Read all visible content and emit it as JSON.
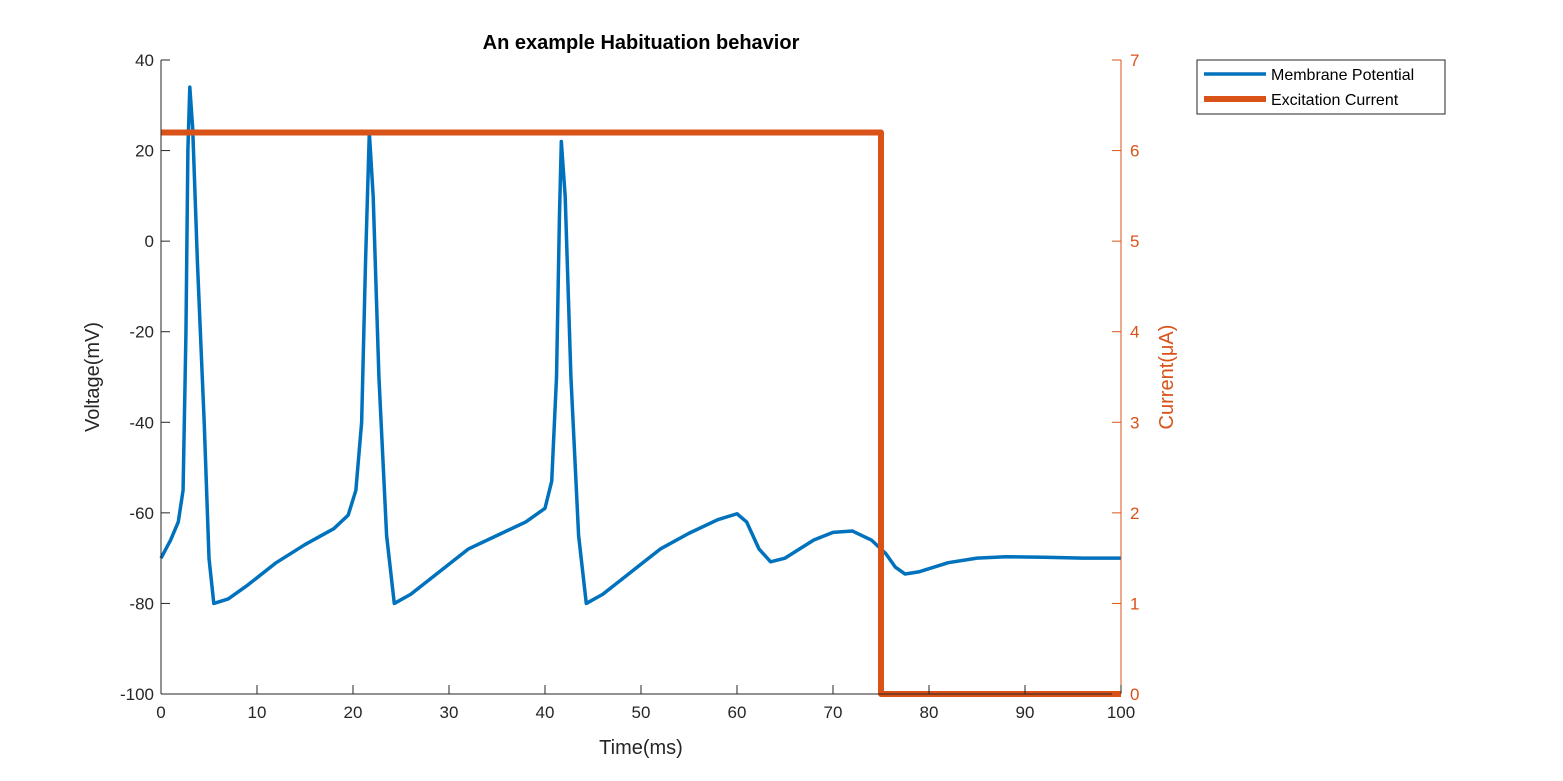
{
  "chart_data": {
    "type": "line",
    "title": "An example Habituation behavior",
    "xlabel": "Time(ms)",
    "ylabel_left": "Voltage(mV)",
    "ylabel_right": "Current(μA)",
    "xlim": [
      0,
      100
    ],
    "ylim_left": [
      -100,
      40
    ],
    "ylim_right": [
      0,
      7
    ],
    "x_ticks": [
      "0",
      "10",
      "20",
      "30",
      "40",
      "50",
      "60",
      "70",
      "80",
      "90",
      "100"
    ],
    "y_left_ticks": [
      "-100",
      "-80",
      "-60",
      "-40",
      "-20",
      "0",
      "20",
      "40"
    ],
    "y_right_ticks": [
      "0",
      "1",
      "2",
      "3",
      "4",
      "5",
      "6",
      "7"
    ],
    "grid": false,
    "legend_position": "outside top-right",
    "series": [
      {
        "name": "Membrane Potential",
        "axis": "left",
        "color": "#0072BD",
        "points": [
          [
            0,
            -70
          ],
          [
            1,
            -66
          ],
          [
            1.8,
            -62
          ],
          [
            2.3,
            -55
          ],
          [
            2.6,
            -20
          ],
          [
            2.8,
            20
          ],
          [
            3.0,
            34
          ],
          [
            3.3,
            25
          ],
          [
            3.8,
            -5
          ],
          [
            4.5,
            -40
          ],
          [
            5.0,
            -70
          ],
          [
            5.5,
            -80
          ],
          [
            7,
            -79
          ],
          [
            9,
            -76
          ],
          [
            12,
            -71
          ],
          [
            15,
            -67
          ],
          [
            18,
            -63.5
          ],
          [
            19.5,
            -60.5
          ],
          [
            20.3,
            -55
          ],
          [
            20.9,
            -40
          ],
          [
            21.3,
            -5
          ],
          [
            21.7,
            24
          ],
          [
            22.1,
            10
          ],
          [
            22.7,
            -30
          ],
          [
            23.5,
            -65
          ],
          [
            24.3,
            -80
          ],
          [
            26,
            -78
          ],
          [
            29,
            -73
          ],
          [
            32,
            -68
          ],
          [
            35,
            -65
          ],
          [
            38,
            -62
          ],
          [
            40,
            -59
          ],
          [
            40.7,
            -53
          ],
          [
            41.2,
            -30
          ],
          [
            41.5,
            5
          ],
          [
            41.7,
            22
          ],
          [
            42.1,
            10
          ],
          [
            42.7,
            -30
          ],
          [
            43.5,
            -65
          ],
          [
            44.3,
            -80
          ],
          [
            46,
            -78
          ],
          [
            49,
            -73
          ],
          [
            52,
            -68
          ],
          [
            55,
            -64.5
          ],
          [
            58,
            -61.5
          ],
          [
            60,
            -60.2
          ],
          [
            61,
            -62
          ],
          [
            62.3,
            -68
          ],
          [
            63.5,
            -70.8
          ],
          [
            65,
            -70
          ],
          [
            68,
            -66
          ],
          [
            70,
            -64.3
          ],
          [
            72,
            -64
          ],
          [
            74,
            -66
          ],
          [
            75.5,
            -69
          ],
          [
            76.5,
            -72
          ],
          [
            77.5,
            -73.5
          ],
          [
            79,
            -73
          ],
          [
            82,
            -71
          ],
          [
            85,
            -70
          ],
          [
            88,
            -69.7
          ],
          [
            92,
            -69.8
          ],
          [
            96,
            -70
          ],
          [
            100,
            -70
          ]
        ]
      },
      {
        "name": "Excitation Current",
        "axis": "right",
        "color": "#D95319",
        "points": [
          [
            0,
            6.2
          ],
          [
            75,
            6.2
          ],
          [
            75,
            0
          ],
          [
            100,
            0
          ]
        ]
      }
    ]
  }
}
